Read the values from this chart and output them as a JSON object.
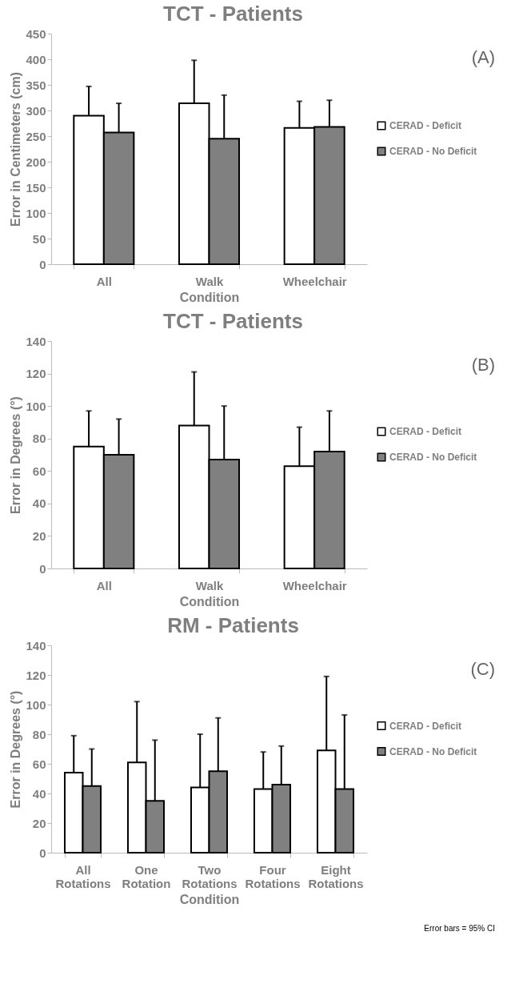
{
  "chart_data": [
    {
      "type": "bar",
      "title": "TCT -  Patients",
      "xlabel": "Condition",
      "ylabel": "Error in Centimeters (cm)",
      "categories": [
        "All",
        "Walk",
        "Wheelchair"
      ],
      "series": [
        {
          "name": "CERAD - Deficit",
          "color": "#ffffff",
          "values": [
            290,
            314,
            266
          ],
          "errors": [
            [
              290,
              347
            ],
            [
              314,
              398
            ],
            [
              266,
              318
            ]
          ]
        },
        {
          "name": "CERAD - No Deficit",
          "color": "#808080",
          "values": [
            257,
            245,
            268
          ],
          "errors": [
            [
              257,
              314
            ],
            [
              245,
              330
            ],
            [
              268,
              320
            ]
          ]
        }
      ],
      "ylim": [
        0,
        450
      ],
      "yticks": [
        0,
        50,
        100,
        150,
        200,
        250,
        300,
        350,
        400,
        450
      ],
      "grid": false,
      "legend": "right",
      "annotations": [
        "(A)"
      ]
    },
    {
      "type": "bar",
      "title": "TCT -  Patients",
      "xlabel": "Condition",
      "ylabel": "Error in Degrees (°)",
      "categories": [
        "All",
        "Walk",
        "Wheelchair"
      ],
      "series": [
        {
          "name": "CERAD - Deficit",
          "color": "#ffffff",
          "values": [
            75,
            88,
            63
          ],
          "errors": [
            [
              75,
              97
            ],
            [
              88,
              121
            ],
            [
              63,
              87
            ]
          ]
        },
        {
          "name": "CERAD - No Deficit",
          "color": "#808080",
          "values": [
            70,
            67,
            72
          ],
          "errors": [
            [
              70,
              92
            ],
            [
              67,
              100
            ],
            [
              72,
              97
            ]
          ]
        }
      ],
      "ylim": [
        0,
        140
      ],
      "yticks": [
        0,
        20,
        40,
        60,
        80,
        100,
        120,
        140
      ],
      "grid": false,
      "legend": "right",
      "annotations": [
        "(B)"
      ]
    },
    {
      "type": "bar",
      "title": "RM - Patients",
      "xlabel": "Condition",
      "ylabel": "Error in Degrees (°)",
      "categories": [
        "All Rotations",
        "One Rotation",
        "Two Rotations",
        "Four Rotations",
        "Eight Rotations"
      ],
      "series": [
        {
          "name": "CERAD - Deficit",
          "color": "#ffffff",
          "values": [
            54,
            61,
            44,
            43,
            69
          ],
          "errors": [
            [
              54,
              79
            ],
            [
              61,
              102
            ],
            [
              44,
              80
            ],
            [
              43,
              68
            ],
            [
              69,
              119
            ]
          ]
        },
        {
          "name": "CERAD - No Deficit",
          "color": "#808080",
          "values": [
            45,
            35,
            55,
            46,
            43
          ],
          "errors": [
            [
              45,
              70
            ],
            [
              35,
              76
            ],
            [
              55,
              91
            ],
            [
              46,
              72
            ],
            [
              43,
              93
            ]
          ]
        }
      ],
      "ylim": [
        0,
        140
      ],
      "yticks": [
        0,
        20,
        40,
        60,
        80,
        100,
        120,
        140
      ],
      "grid": false,
      "legend": "right",
      "annotations": [
        "(C)",
        "Error bars = 95% CI"
      ]
    }
  ]
}
